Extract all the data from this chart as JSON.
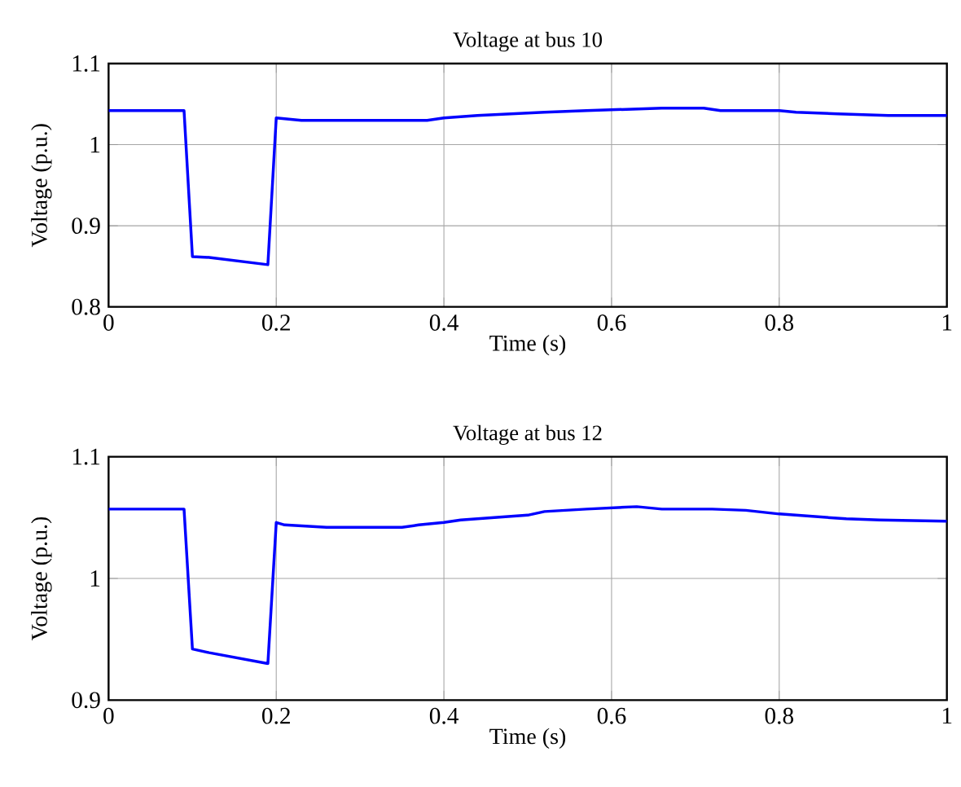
{
  "chart_data": [
    {
      "type": "line",
      "title": "Voltage at bus 10",
      "xlabel": "Time (s)",
      "ylabel": "Voltage (p.u.)",
      "xlim": [
        0,
        1
      ],
      "ylim": [
        0.8,
        1.1
      ],
      "xticks": [
        0,
        0.2,
        0.4,
        0.6,
        0.8,
        1
      ],
      "yticks": [
        0.8,
        0.9,
        1,
        1.1
      ],
      "grid": true,
      "series": [
        {
          "color": "#0000ff",
          "x": [
            0,
            0.09,
            0.1,
            0.12,
            0.19,
            0.2,
            0.23,
            0.38,
            0.4,
            0.44,
            0.48,
            0.52,
            0.57,
            0.66,
            0.71,
            0.73,
            0.8,
            0.82,
            0.87,
            0.93,
            1.0
          ],
          "values": [
            1.042,
            1.042,
            0.862,
            0.861,
            0.852,
            1.033,
            1.03,
            1.03,
            1.033,
            1.036,
            1.038,
            1.04,
            1.042,
            1.045,
            1.045,
            1.042,
            1.042,
            1.04,
            1.038,
            1.036,
            1.036
          ]
        }
      ]
    },
    {
      "type": "line",
      "title": "Voltage at bus 12",
      "xlabel": "Time (s)",
      "ylabel": "Voltage (p.u.)",
      "xlim": [
        0,
        1
      ],
      "ylim": [
        0.9,
        1.1
      ],
      "xticks": [
        0,
        0.2,
        0.4,
        0.6,
        0.8,
        1
      ],
      "yticks": [
        0.9,
        1,
        1.1
      ],
      "grid": true,
      "series": [
        {
          "color": "#0000ff",
          "x": [
            0,
            0.09,
            0.1,
            0.12,
            0.19,
            0.2,
            0.21,
            0.26,
            0.35,
            0.37,
            0.4,
            0.42,
            0.46,
            0.5,
            0.52,
            0.57,
            0.63,
            0.66,
            0.72,
            0.76,
            0.8,
            0.84,
            0.88,
            0.92,
            1.0
          ],
          "values": [
            1.057,
            1.057,
            0.942,
            0.939,
            0.93,
            1.046,
            1.044,
            1.042,
            1.042,
            1.044,
            1.046,
            1.048,
            1.05,
            1.052,
            1.055,
            1.057,
            1.059,
            1.057,
            1.057,
            1.056,
            1.053,
            1.051,
            1.049,
            1.048,
            1.047
          ]
        }
      ]
    }
  ]
}
